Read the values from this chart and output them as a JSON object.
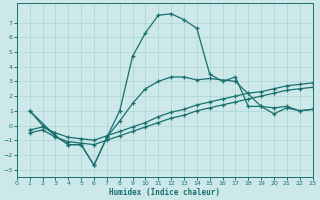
{
  "xlabel": "Humidex (Indice chaleur)",
  "bg_color": "#cce8e8",
  "grid_color": "#aad4d4",
  "line_color": "#1a7070",
  "xlim": [
    0,
    23
  ],
  "ylim": [
    -3.5,
    8.3
  ],
  "yticks": [
    -3,
    -2,
    -1,
    0,
    1,
    2,
    3,
    4,
    5,
    6,
    7
  ],
  "xticks": [
    0,
    1,
    2,
    3,
    4,
    5,
    6,
    7,
    8,
    9,
    10,
    11,
    12,
    13,
    14,
    15,
    16,
    17,
    18,
    19,
    20,
    21,
    22,
    23
  ],
  "line1_x": [
    1,
    2,
    3,
    4,
    5,
    6,
    7,
    8,
    9,
    10,
    11,
    12,
    13,
    14,
    15,
    16,
    17,
    18,
    19,
    20,
    21,
    22,
    23
  ],
  "line1_y": [
    1.0,
    0.0,
    -0.7,
    -1.3,
    -1.3,
    -2.7,
    -0.8,
    1.0,
    4.7,
    6.3,
    7.5,
    7.6,
    7.2,
    6.6,
    3.5,
    3.0,
    3.3,
    1.3,
    1.3,
    0.8,
    1.2,
    1.0,
    1.1
  ],
  "line2_x": [
    1,
    3,
    4,
    5,
    6,
    7,
    8,
    9,
    10,
    11,
    12,
    13,
    14,
    15,
    17,
    19,
    20,
    21,
    22,
    23
  ],
  "line2_y": [
    1.0,
    -0.7,
    -1.3,
    -1.3,
    -2.7,
    -0.8,
    0.3,
    1.5,
    2.5,
    3.0,
    3.3,
    3.3,
    3.1,
    3.2,
    3.0,
    1.3,
    1.2,
    1.3,
    1.0,
    1.1
  ],
  "line3_x": [
    1,
    2,
    3,
    4,
    5,
    6,
    7,
    8,
    9,
    10,
    11,
    12,
    13,
    14,
    15,
    16,
    17,
    18,
    19,
    20,
    21,
    22,
    23
  ],
  "line3_y": [
    -0.3,
    -0.1,
    -0.5,
    -0.8,
    -0.9,
    -1.0,
    -0.7,
    -0.4,
    -0.1,
    0.2,
    0.6,
    0.9,
    1.1,
    1.4,
    1.6,
    1.8,
    2.0,
    2.2,
    2.3,
    2.5,
    2.7,
    2.8,
    2.9
  ],
  "line4_x": [
    1,
    2,
    3,
    4,
    5,
    6,
    7,
    8,
    9,
    10,
    11,
    12,
    13,
    14,
    15,
    16,
    17,
    18,
    19,
    20,
    21,
    22,
    23
  ],
  "line4_y": [
    -0.5,
    -0.3,
    -0.8,
    -1.1,
    -1.2,
    -1.3,
    -1.0,
    -0.7,
    -0.4,
    -0.1,
    0.2,
    0.5,
    0.7,
    1.0,
    1.2,
    1.4,
    1.6,
    1.8,
    2.0,
    2.2,
    2.4,
    2.5,
    2.6
  ]
}
